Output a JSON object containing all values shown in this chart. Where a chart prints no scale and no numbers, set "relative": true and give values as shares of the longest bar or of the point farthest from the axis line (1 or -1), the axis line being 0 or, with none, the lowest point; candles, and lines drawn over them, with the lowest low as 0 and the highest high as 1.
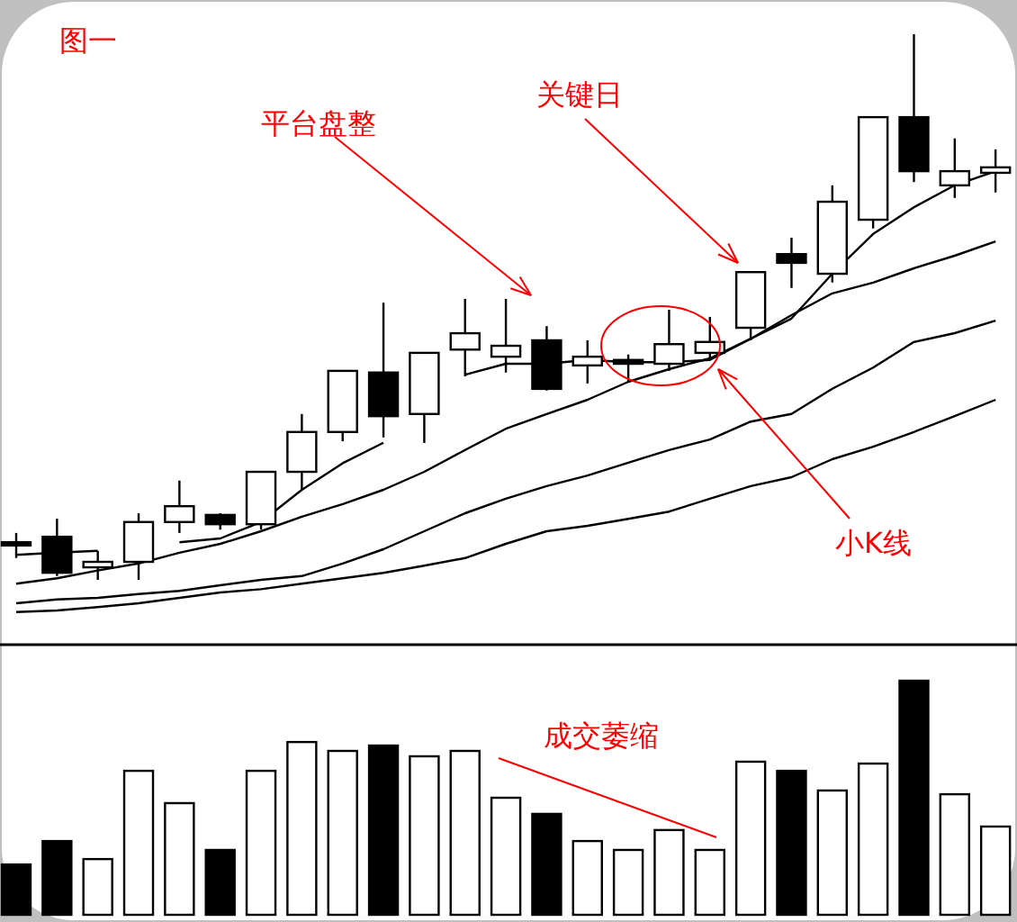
{
  "chart_data": [
    {
      "type": "candlestick",
      "relative": true,
      "categories": [
        null,
        null,
        null,
        null,
        null,
        null,
        null,
        null,
        null,
        null,
        null,
        null,
        null,
        null,
        null,
        null,
        null,
        null,
        null,
        null,
        null,
        null,
        null,
        null,
        null
      ],
      "ohlc": [
        [
          0.069,
          0.086,
          0.04,
          0.063
        ],
        [
          0.079,
          0.112,
          0.007,
          0.013
        ],
        [
          0.023,
          0.053,
          0,
          0.033
        ],
        [
          0.033,
          0.122,
          0,
          0.106
        ],
        [
          0.106,
          0.182,
          0.086,
          0.135
        ],
        [
          0.119,
          0.122,
          0.092,
          0.102
        ],
        [
          0.102,
          0.198,
          0.092,
          0.198
        ],
        [
          0.198,
          0.304,
          0.165,
          0.271
        ],
        [
          0.271,
          0.383,
          0.254,
          0.383
        ],
        [
          0.38,
          0.508,
          0.261,
          0.3
        ],
        [
          0.304,
          0.416,
          0.251,
          0.416
        ],
        [
          0.422,
          0.515,
          0.373,
          0.452
        ],
        [
          0.409,
          0.515,
          0.38,
          0.429
        ],
        [
          0.439,
          0.465,
          0.347,
          0.35
        ],
        [
          0.393,
          0.439,
          0.36,
          0.409
        ],
        [
          0.403,
          0.413,
          0.363,
          0.396
        ],
        [
          0.396,
          0.495,
          0.383,
          0.432
        ],
        [
          0.416,
          0.482,
          0.403,
          0.436
        ],
        [
          0.462,
          0.564,
          0.439,
          0.564
        ],
        [
          0.597,
          0.627,
          0.535,
          0.581
        ],
        [
          0.561,
          0.723,
          0.545,
          0.693
        ],
        [
          0.66,
          0.848,
          0.644,
          0.848
        ],
        [
          0.848,
          1,
          0.729,
          0.749
        ],
        [
          0.723,
          0.809,
          0.7,
          0.749
        ],
        [
          0.746,
          0.789,
          0.71,
          0.756
        ]
      ],
      "colors": [
        "#000000",
        "#000000",
        "#ffffff",
        "#ffffff",
        "#ffffff",
        "#000000",
        "#ffffff",
        "#ffffff",
        "#ffffff",
        "#000000",
        "#ffffff",
        "#ffffff",
        "#ffffff",
        "#000000",
        "#ffffff",
        "#000000",
        "#ffffff",
        "#ffffff",
        "#ffffff",
        "#000000",
        "#ffffff",
        "#ffffff",
        "#000000",
        "#ffffff",
        "#ffffff"
      ],
      "series": [
        {
          "type": "line",
          "color": "#000000",
          "values": [
            0.046,
            0.05,
            0.053,
            null,
            0.069,
            0.076,
            0.106,
            0.165,
            0.214,
            0.251,
            null,
            0.376,
            0.396,
            0.396,
            0.403,
            0.399,
            0.399,
            0.403,
            0.442,
            0.479,
            0.561,
            0.634,
            0.683,
            0.723,
            0.749
          ]
        },
        {
          "type": "line",
          "color": "#000000",
          "values": [
            -0.007,
            0.003,
            0.017,
            0.03,
            0.05,
            0.066,
            0.089,
            0.116,
            0.139,
            0.165,
            0.198,
            0.238,
            0.277,
            0.304,
            0.33,
            0.363,
            0.386,
            0.406,
            0.442,
            0.485,
            0.525,
            0.545,
            0.571,
            0.594,
            0.62
          ]
        },
        {
          "type": "line",
          "color": "#000000",
          "values": [
            -0.043,
            -0.036,
            -0.033,
            -0.026,
            -0.02,
            -0.01,
            0,
            0.007,
            0.03,
            0.056,
            0.089,
            0.122,
            0.149,
            0.172,
            0.191,
            0.215,
            0.238,
            0.257,
            0.29,
            0.304,
            0.35,
            0.389,
            0.436,
            0.452,
            0.475
          ]
        },
        {
          "type": "line",
          "color": "#000000",
          "values": [
            -0.059,
            -0.056,
            -0.05,
            -0.043,
            -0.033,
            -0.023,
            -0.017,
            -0.007,
            0.003,
            0.013,
            0.026,
            0.04,
            0.066,
            0.089,
            0.099,
            0.112,
            0.125,
            0.149,
            0.172,
            0.188,
            0.221,
            0.244,
            0.271,
            0.3,
            0.33
          ]
        }
      ],
      "annotations": [
        "图一",
        "平台盘整",
        "关键日",
        "小K线"
      ]
    },
    {
      "type": "bar",
      "relative": true,
      "categories": [
        null,
        null,
        null,
        null,
        null,
        null,
        null,
        null,
        null,
        null,
        null,
        null,
        null,
        null,
        null,
        null,
        null,
        null,
        null,
        null,
        null,
        null,
        null,
        null,
        null
      ],
      "values": [
        0.215,
        0.315,
        0.238,
        0.615,
        0.477,
        0.277,
        0.615,
        0.738,
        0.7,
        0.723,
        0.677,
        0.7,
        0.5,
        0.431,
        0.315,
        0.277,
        0.362,
        0.277,
        0.654,
        0.615,
        0.531,
        0.646,
        1,
        0.515,
        0.377
      ],
      "colors": [
        "#000000",
        "#000000",
        "#ffffff",
        "#ffffff",
        "#ffffff",
        "#000000",
        "#ffffff",
        "#ffffff",
        "#ffffff",
        "#000000",
        "#ffffff",
        "#ffffff",
        "#ffffff",
        "#000000",
        "#ffffff",
        "#ffffff",
        "#ffffff",
        "#ffffff",
        "#ffffff",
        "#000000",
        "#ffffff",
        "#ffffff",
        "#000000",
        "#ffffff",
        "#ffffff"
      ],
      "annotations": [
        "成交萎缩"
      ]
    }
  ]
}
